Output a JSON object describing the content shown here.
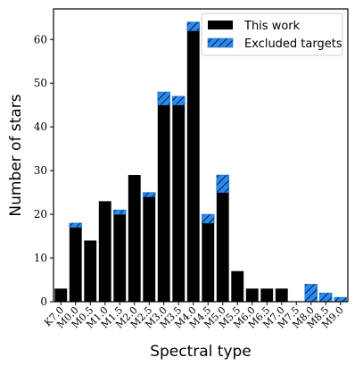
{
  "chart_data": {
    "type": "bar",
    "stacked": true,
    "xlabel": "Spectral type",
    "ylabel": "Number of stars",
    "ylim": [
      0,
      67
    ],
    "yticks": [
      0,
      10,
      20,
      30,
      40,
      50,
      60
    ],
    "grid": false,
    "legend_position": "top-right",
    "categories": [
      "K7.0",
      "M0.0",
      "M0.5",
      "M1.0",
      "M1.5",
      "M2.0",
      "M2.5",
      "M3.0",
      "M3.5",
      "M4.0",
      "M4.5",
      "M5.0",
      "M5.5",
      "M6.0",
      "M6.5",
      "M7.0",
      "M7.5",
      "M8.0",
      "M8.5",
      "M9.0"
    ],
    "series": [
      {
        "name": "This work",
        "color": "#000000",
        "values": [
          3,
          17,
          14,
          23,
          20,
          29,
          24,
          45,
          45,
          62,
          18,
          25,
          7,
          3,
          3,
          3,
          0,
          0,
          0,
          0
        ]
      },
      {
        "name": "Excluded targets",
        "color": "#2a8af0",
        "pattern": "hatch",
        "values": [
          0,
          1,
          0,
          0,
          1,
          0,
          1,
          3,
          2,
          2,
          2,
          4,
          0,
          0,
          0,
          0,
          0,
          4,
          2,
          1
        ]
      }
    ]
  }
}
